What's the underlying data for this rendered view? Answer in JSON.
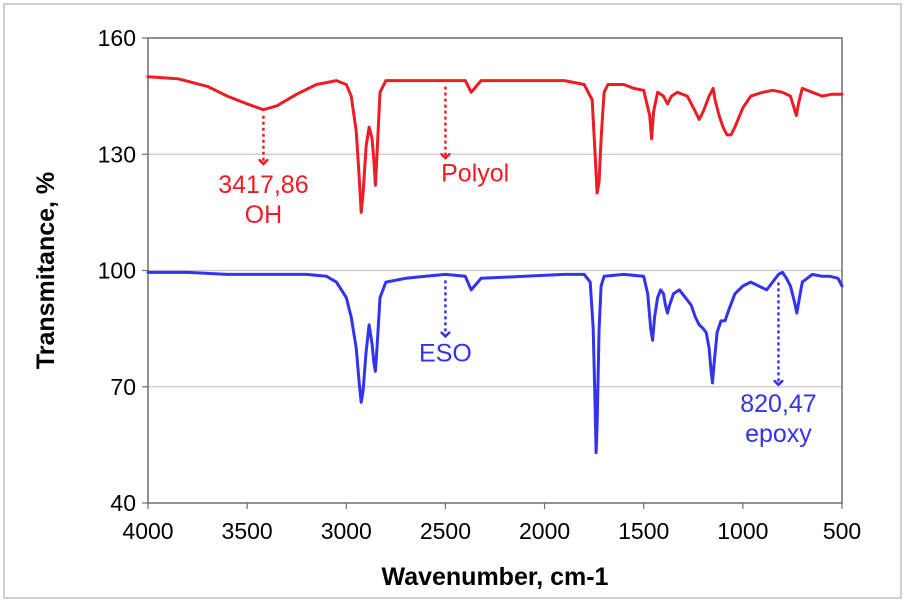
{
  "chart_data": {
    "type": "line",
    "xlabel": "Wavenumber, cm-1",
    "ylabel": "Transmitance, %",
    "xlim": [
      4000,
      500
    ],
    "ylim": [
      40,
      160
    ],
    "x_reversed": true,
    "xticks": [
      4000,
      3500,
      3000,
      2500,
      2000,
      1500,
      1000,
      500
    ],
    "yticks": [
      40,
      70,
      100,
      130,
      160
    ],
    "grid": "horizontal",
    "legend": "none",
    "series": [
      {
        "name": "Polyol",
        "color": "#ee1c24",
        "points": [
          [
            4000,
            150
          ],
          [
            3850,
            149.5
          ],
          [
            3700,
            147.5
          ],
          [
            3600,
            145
          ],
          [
            3500,
            143
          ],
          [
            3417.86,
            141.5
          ],
          [
            3350,
            142.5
          ],
          [
            3250,
            145.5
          ],
          [
            3150,
            148
          ],
          [
            3050,
            149
          ],
          [
            3000,
            148
          ],
          [
            2975,
            145
          ],
          [
            2950,
            136
          ],
          [
            2935,
            124
          ],
          [
            2925,
            115
          ],
          [
            2915,
            120
          ],
          [
            2900,
            132
          ],
          [
            2885,
            137
          ],
          [
            2870,
            134
          ],
          [
            2860,
            128
          ],
          [
            2853,
            122
          ],
          [
            2845,
            130
          ],
          [
            2830,
            146
          ],
          [
            2800,
            149
          ],
          [
            2700,
            149
          ],
          [
            2600,
            149
          ],
          [
            2500,
            149
          ],
          [
            2400,
            149
          ],
          [
            2370,
            146
          ],
          [
            2345,
            147.5
          ],
          [
            2320,
            149
          ],
          [
            2100,
            149
          ],
          [
            1900,
            149
          ],
          [
            1800,
            148
          ],
          [
            1760,
            144
          ],
          [
            1745,
            130
          ],
          [
            1735,
            120
          ],
          [
            1725,
            123
          ],
          [
            1715,
            134
          ],
          [
            1700,
            146
          ],
          [
            1680,
            148
          ],
          [
            1600,
            148
          ],
          [
            1550,
            147
          ],
          [
            1500,
            146.5
          ],
          [
            1470,
            140
          ],
          [
            1460,
            134
          ],
          [
            1450,
            141
          ],
          [
            1430,
            146
          ],
          [
            1400,
            145
          ],
          [
            1380,
            143
          ],
          [
            1360,
            145
          ],
          [
            1330,
            146
          ],
          [
            1280,
            145
          ],
          [
            1240,
            141
          ],
          [
            1220,
            139
          ],
          [
            1200,
            141
          ],
          [
            1170,
            145
          ],
          [
            1160,
            146
          ],
          [
            1150,
            147
          ],
          [
            1140,
            144
          ],
          [
            1120,
            140
          ],
          [
            1100,
            137
          ],
          [
            1080,
            135
          ],
          [
            1060,
            135
          ],
          [
            1040,
            137
          ],
          [
            1000,
            142
          ],
          [
            960,
            145
          ],
          [
            900,
            146
          ],
          [
            850,
            146.5
          ],
          [
            800,
            146
          ],
          [
            760,
            145
          ],
          [
            730,
            140
          ],
          [
            720,
            143
          ],
          [
            700,
            147
          ],
          [
            650,
            146
          ],
          [
            600,
            145
          ],
          [
            550,
            145.5
          ],
          [
            500,
            145.5
          ]
        ]
      },
      {
        "name": "ESO",
        "color": "#3333ee",
        "points": [
          [
            4000,
            99.5
          ],
          [
            3800,
            99.5
          ],
          [
            3600,
            99
          ],
          [
            3400,
            99
          ],
          [
            3200,
            99
          ],
          [
            3100,
            98.5
          ],
          [
            3050,
            97
          ],
          [
            3000,
            93
          ],
          [
            2975,
            88
          ],
          [
            2950,
            80
          ],
          [
            2935,
            71
          ],
          [
            2925,
            66
          ],
          [
            2915,
            69
          ],
          [
            2900,
            79
          ],
          [
            2885,
            86
          ],
          [
            2870,
            81
          ],
          [
            2860,
            76
          ],
          [
            2853,
            74
          ],
          [
            2845,
            80
          ],
          [
            2830,
            93
          ],
          [
            2800,
            97
          ],
          [
            2700,
            98
          ],
          [
            2600,
            98.5
          ],
          [
            2500,
            99
          ],
          [
            2400,
            98.5
          ],
          [
            2370,
            95
          ],
          [
            2345,
            96.5
          ],
          [
            2320,
            98
          ],
          [
            2100,
            98.5
          ],
          [
            1900,
            99
          ],
          [
            1800,
            99
          ],
          [
            1770,
            97
          ],
          [
            1755,
            85
          ],
          [
            1745,
            65
          ],
          [
            1740,
            53
          ],
          [
            1735,
            60
          ],
          [
            1725,
            85
          ],
          [
            1715,
            96
          ],
          [
            1700,
            98.5
          ],
          [
            1600,
            99
          ],
          [
            1500,
            98.5
          ],
          [
            1480,
            94
          ],
          [
            1465,
            85
          ],
          [
            1455,
            82
          ],
          [
            1445,
            88
          ],
          [
            1430,
            93
          ],
          [
            1415,
            95
          ],
          [
            1400,
            94
          ],
          [
            1390,
            91
          ],
          [
            1380,
            89
          ],
          [
            1370,
            91
          ],
          [
            1350,
            94
          ],
          [
            1320,
            95
          ],
          [
            1290,
            93
          ],
          [
            1260,
            91
          ],
          [
            1240,
            88
          ],
          [
            1220,
            86
          ],
          [
            1200,
            85
          ],
          [
            1185,
            84
          ],
          [
            1170,
            80
          ],
          [
            1160,
            74
          ],
          [
            1153,
            71
          ],
          [
            1145,
            76
          ],
          [
            1130,
            84
          ],
          [
            1110,
            87
          ],
          [
            1090,
            87
          ],
          [
            1070,
            90
          ],
          [
            1040,
            94
          ],
          [
            1000,
            96
          ],
          [
            960,
            97
          ],
          [
            920,
            96
          ],
          [
            880,
            95
          ],
          [
            850,
            97
          ],
          [
            820,
            99
          ],
          [
            800,
            99.5
          ],
          [
            780,
            98
          ],
          [
            760,
            96
          ],
          [
            740,
            92
          ],
          [
            728,
            89
          ],
          [
            718,
            92
          ],
          [
            700,
            97
          ],
          [
            650,
            99
          ],
          [
            600,
            98.5
          ],
          [
            560,
            98.5
          ],
          [
            520,
            98
          ],
          [
            500,
            96
          ]
        ]
      }
    ],
    "annotations": [
      {
        "id": "oh-annotation",
        "series": "Polyol",
        "x": 3417.86,
        "arrow_from_y": 141.5,
        "arrow_to_y": 127.5,
        "lines": [
          "3417,86",
          "OH"
        ],
        "color": "#ee1c24",
        "label_y": 120
      },
      {
        "id": "polyol-label",
        "series": "Polyol",
        "x": 2500,
        "arrow_from_y": 149,
        "arrow_to_y": 129,
        "lines": [
          "Polyol"
        ],
        "color": "#ee1c24",
        "label_y": 123,
        "label_x": 2350
      },
      {
        "id": "eso-label",
        "series": "ESO",
        "x": 2500,
        "arrow_from_y": 99,
        "arrow_to_y": 83,
        "lines": [
          "ESO"
        ],
        "color": "#3333ee",
        "label_y": 76.5,
        "label_x": 2500
      },
      {
        "id": "epoxy-annotation",
        "series": "ESO",
        "x": 820.47,
        "arrow_from_y": 98.5,
        "arrow_to_y": 70.5,
        "lines": [
          "820,47",
          "epoxy"
        ],
        "color": "#3333ee",
        "label_y": 63.5
      }
    ]
  }
}
